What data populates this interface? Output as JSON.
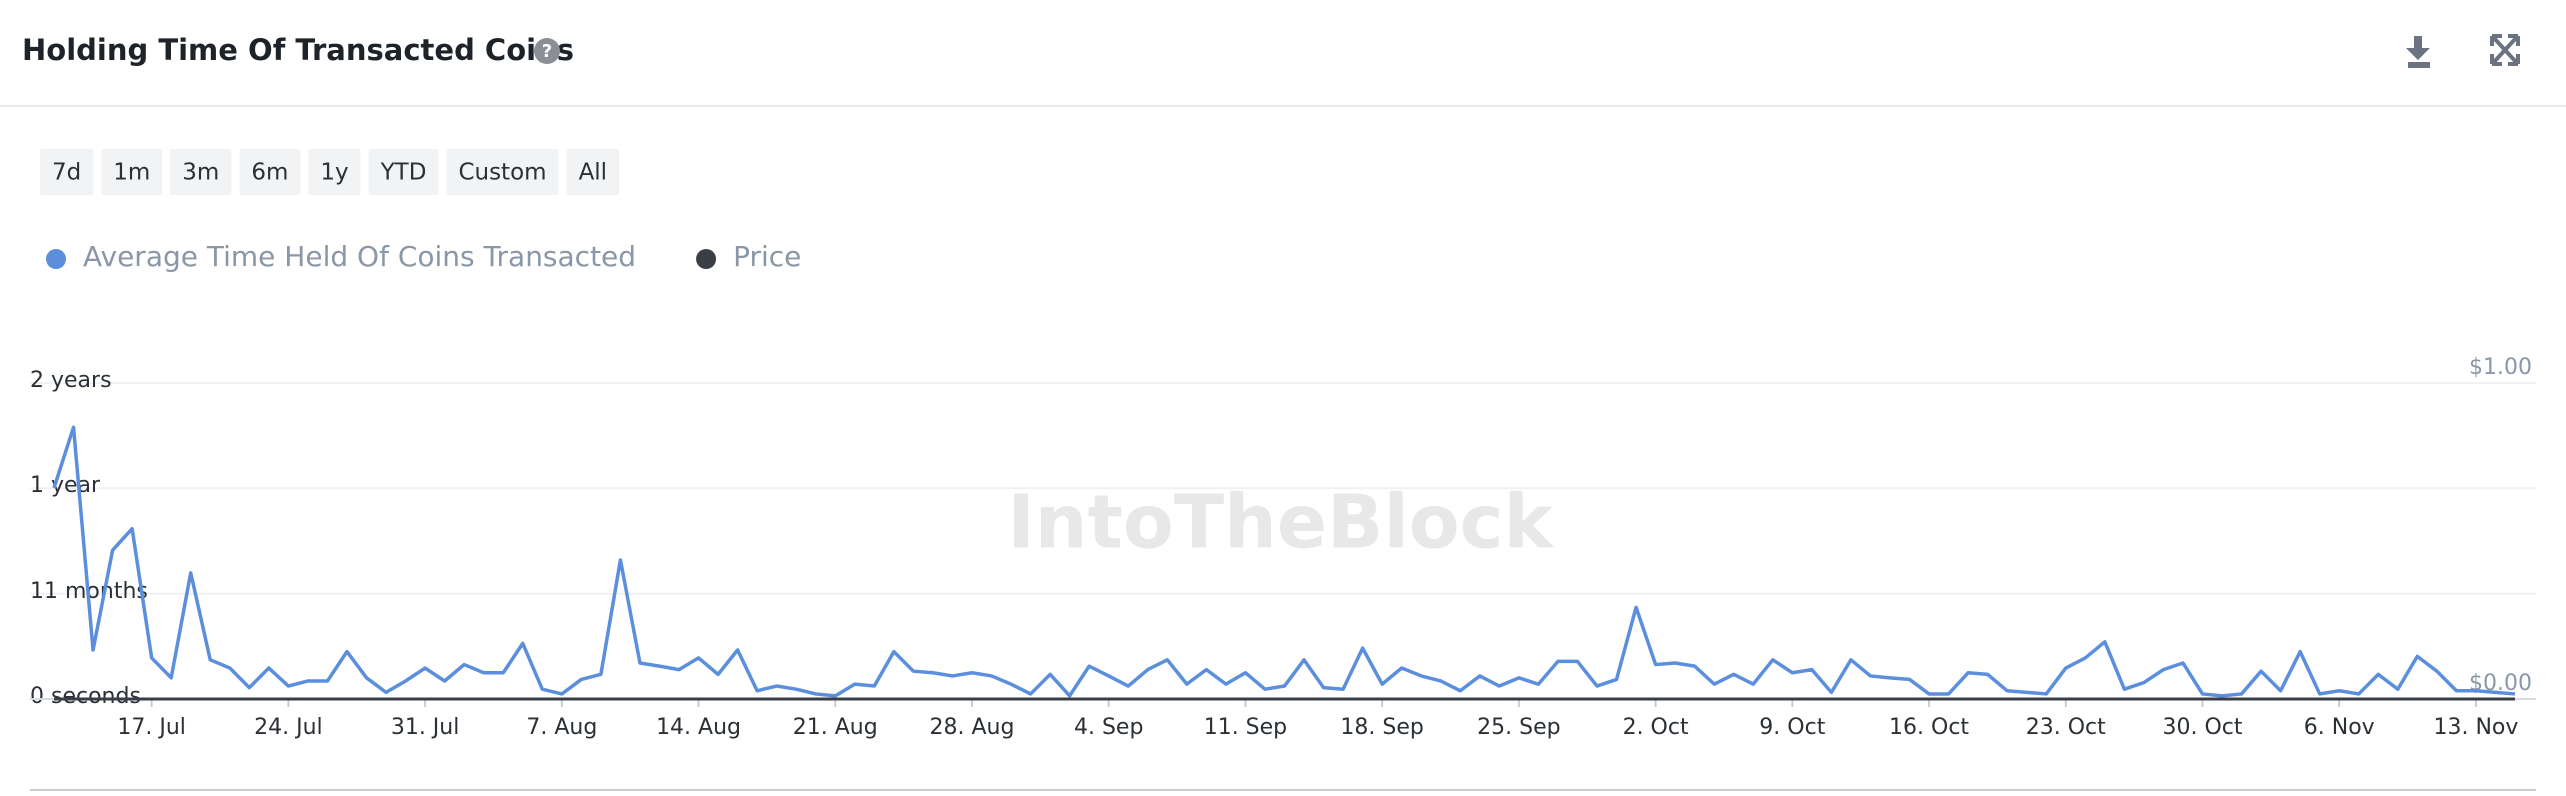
{
  "header": {
    "title": "Holding Time Of Transacted Coins"
  },
  "range_buttons": [
    "7d",
    "1m",
    "3m",
    "6m",
    "1y",
    "YTD",
    "Custom",
    "All"
  ],
  "watermark": "IntoTheBlock",
  "chart_data": {
    "type": "line",
    "categories": [
      null,
      null,
      null,
      null,
      null,
      "17. Jul",
      null,
      null,
      null,
      null,
      null,
      null,
      "24. Jul",
      null,
      null,
      null,
      null,
      null,
      null,
      "31. Jul",
      null,
      null,
      null,
      null,
      null,
      null,
      "7. Aug",
      null,
      null,
      null,
      null,
      null,
      null,
      "14. Aug",
      null,
      null,
      null,
      null,
      null,
      null,
      "21. Aug",
      null,
      null,
      null,
      null,
      null,
      null,
      "28. Aug",
      null,
      null,
      null,
      null,
      null,
      null,
      "4. Sep",
      null,
      null,
      null,
      null,
      null,
      null,
      "11. Sep",
      null,
      null,
      null,
      null,
      null,
      null,
      "18. Sep",
      null,
      null,
      null,
      null,
      null,
      null,
      "25. Sep",
      null,
      null,
      null,
      null,
      null,
      null,
      "2. Oct",
      null,
      null,
      null,
      null,
      null,
      null,
      "9. Oct",
      null,
      null,
      null,
      null,
      null,
      null,
      "16. Oct",
      null,
      null,
      null,
      null,
      null,
      null,
      "23. Oct",
      null,
      null,
      null,
      null,
      null,
      null,
      "30. Oct",
      null,
      null,
      null,
      null,
      null,
      null,
      "6. Nov",
      null,
      null,
      null,
      null,
      null,
      null,
      "13. Nov",
      null,
      null
    ],
    "series": [
      {
        "name": "Average Time Held Of Coins Transacted",
        "color": "#5b8fde",
        "values": [
          668,
          860,
          155,
          471,
          539,
          130,
          67,
          399,
          124,
          98,
          36,
          98,
          41,
          57,
          57,
          150,
          67,
          21,
          57,
          98,
          57,
          109,
          83,
          83,
          176,
          31,
          16,
          62,
          78,
          440,
          114,
          104,
          93,
          130,
          78,
          155,
          26,
          41,
          31,
          16,
          10,
          47,
          41,
          150,
          88,
          83,
          73,
          83,
          73,
          47,
          16,
          78,
          10,
          104,
          73,
          41,
          93,
          124,
          47,
          93,
          47,
          83,
          31,
          41,
          124,
          36,
          31,
          161,
          47,
          98,
          73,
          57,
          26,
          73,
          41,
          67,
          47,
          119,
          119,
          41,
          62,
          290,
          109,
          114,
          104,
          47,
          78,
          47,
          124,
          83,
          93,
          21,
          124,
          73,
          67,
          62,
          16,
          16,
          83,
          78,
          26,
          21,
          16,
          98,
          130,
          181,
          31,
          52,
          93,
          114,
          16,
          10,
          16,
          88,
          26,
          150,
          16,
          26,
          16,
          78,
          31,
          135,
          88,
          26,
          26,
          21,
          16
        ]
      },
      {
        "name": "Price",
        "color": "#3a3f47",
        "axis": "y2",
        "values": [
          0,
          0,
          0,
          0,
          0,
          0,
          0,
          0,
          0,
          0,
          0,
          0,
          0,
          0,
          0,
          0,
          0,
          0,
          0,
          0,
          0,
          0,
          0,
          0,
          0,
          0,
          0,
          0,
          0,
          0,
          0,
          0,
          0,
          0,
          0,
          0,
          0,
          0,
          0,
          0,
          0,
          0,
          0,
          0,
          0,
          0,
          0,
          0,
          0,
          0,
          0,
          0,
          0,
          0,
          0,
          0,
          0,
          0,
          0,
          0,
          0,
          0,
          0,
          0,
          0,
          0,
          0,
          0,
          0,
          0,
          0,
          0,
          0,
          0,
          0,
          0,
          0,
          0,
          0,
          0,
          0,
          0,
          0,
          0,
          0,
          0,
          0,
          0,
          0,
          0,
          0,
          0,
          0,
          0,
          0,
          0,
          0,
          0,
          0,
          0,
          0,
          0,
          0,
          0,
          0,
          0,
          0,
          0,
          0,
          0,
          0,
          0,
          0,
          0,
          0,
          0,
          0,
          0,
          0,
          0,
          0,
          0,
          0,
          0,
          0,
          0,
          0
        ]
      }
    ],
    "ylim": [
      0,
      1000
    ],
    "yticks": [
      {
        "value": 0,
        "label": "0 seconds"
      },
      {
        "value": 333,
        "label": "11 months"
      },
      {
        "value": 667,
        "label": "1 year"
      },
      {
        "value": 1000,
        "label": "2 years"
      }
    ],
    "y2lim": [
      0,
      1
    ],
    "y2ticks": [
      {
        "value": 0,
        "label": "$0.00"
      },
      {
        "value": 1,
        "label": "$1.00"
      }
    ],
    "grid": true
  }
}
